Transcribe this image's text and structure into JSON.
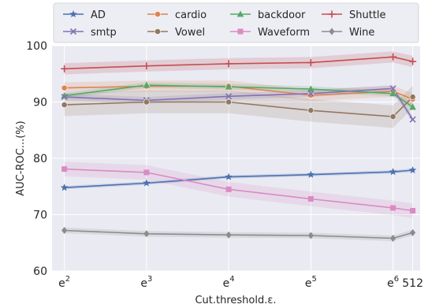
{
  "chart_data": {
    "type": "line",
    "title": "",
    "xlabel": "Cut.threshold.ε.",
    "ylabel": "AUC-ROC...(%)",
    "ylim": [
      60,
      100
    ],
    "yticks": [
      60,
      70,
      80,
      90,
      100
    ],
    "xticks": [
      {
        "x": 2,
        "base": "e",
        "exp": "2"
      },
      {
        "x": 3,
        "base": "e",
        "exp": "3"
      },
      {
        "x": 4,
        "base": "e",
        "exp": "4"
      },
      {
        "x": 5,
        "base": "e",
        "exp": "5"
      },
      {
        "x": 6,
        "base": "e",
        "exp": "6"
      },
      {
        "x": 6.24,
        "base": "512",
        "exp": ""
      }
    ],
    "x": [
      2,
      3,
      4,
      5,
      6,
      6.24
    ],
    "grid": true,
    "legend_position": "top",
    "series": [
      {
        "name": "AD",
        "color": "#4c72b0",
        "marker": "star",
        "values": [
          74.8,
          75.6,
          76.7,
          77.1,
          77.6,
          77.9
        ],
        "band": 0.3
      },
      {
        "name": "cardio",
        "color": "#dd8452",
        "marker": "circle",
        "values": [
          92.5,
          92.8,
          92.8,
          91.2,
          91.9,
          90.5
        ],
        "band": 1.0
      },
      {
        "name": "backdoor",
        "color": "#55a868",
        "marker": "triangle",
        "values": [
          91.1,
          93.0,
          92.7,
          92.3,
          91.5,
          89.1
        ],
        "band": 0.5
      },
      {
        "name": "Shuttle",
        "color": "#c44e52",
        "marker": "plus",
        "values": [
          95.9,
          96.4,
          96.8,
          97.0,
          98.0,
          97.2
        ],
        "band": 1.0
      },
      {
        "name": "smtp",
        "color": "#8172b3",
        "marker": "x",
        "values": [
          90.9,
          90.3,
          91.0,
          91.5,
          92.4,
          86.9
        ],
        "band": 0.6
      },
      {
        "name": "Vowel",
        "color": "#937860",
        "marker": "circle",
        "values": [
          89.5,
          90.0,
          90.0,
          88.5,
          87.4,
          90.9
        ],
        "band": 2.0
      },
      {
        "name": "Waveform",
        "color": "#da8bc3",
        "marker": "square",
        "values": [
          78.1,
          77.5,
          74.5,
          72.8,
          71.2,
          70.7
        ],
        "band": 1.3
      },
      {
        "name": "Wine",
        "color": "#8c8c8c",
        "marker": "diamond",
        "values": [
          67.2,
          66.6,
          66.4,
          66.3,
          65.8,
          66.8
        ],
        "band": 0.5
      }
    ]
  }
}
